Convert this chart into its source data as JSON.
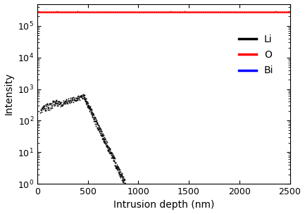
{
  "title": "",
  "xlabel": "Intrusion depth (nm)",
  "ylabel": "Intensity",
  "xlim": [
    0,
    2500
  ],
  "ylim_log": [
    1.0,
    500000
  ],
  "xticks": [
    0,
    500,
    1000,
    1500,
    2000,
    2500
  ],
  "legend_labels": [
    "Li",
    "O",
    "Bi"
  ],
  "legend_colors": [
    "black",
    "red",
    "blue"
  ],
  "O_y_value": 280000,
  "O_noise_scale": 0.008,
  "O_n_points": 600,
  "Li_x_start": 30,
  "Li_x_peak1": 200,
  "Li_x_peak2": 460,
  "Li_x_end": 870,
  "Li_y_start": 220,
  "Li_y_peak": 600,
  "Li_y_end": 1.0,
  "Li_n_rise": 150,
  "Li_n_fall": 250,
  "marker_size_O": 2.0,
  "marker_size_Li": 1.8,
  "line_color_Li": "black",
  "line_color_O": "red",
  "line_color_Bi": "blue",
  "background_color": "white",
  "xlabel_fontsize": 10,
  "ylabel_fontsize": 10,
  "tick_fontsize": 9,
  "legend_fontsize": 10
}
